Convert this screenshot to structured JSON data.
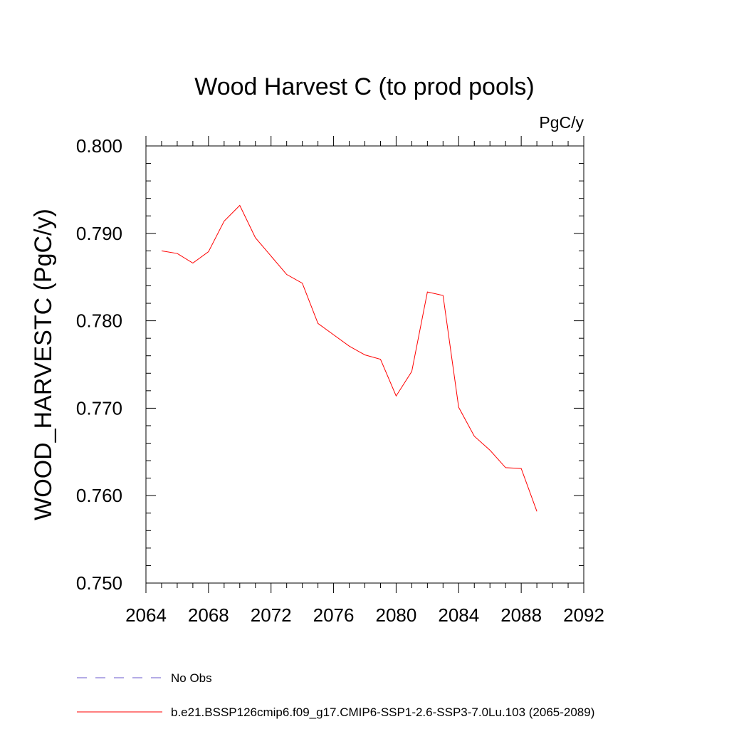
{
  "chart_data": {
    "type": "line",
    "title": "Wood Harvest C (to prod pools)",
    "units": "PgC/y",
    "xlabel": "",
    "ylabel": "WOOD_HARVESTC  (PgC/y)",
    "xlim": [
      2064,
      2092
    ],
    "ylim": [
      0.75,
      0.8
    ],
    "x_ticks": [
      2064,
      2068,
      2072,
      2076,
      2080,
      2084,
      2088,
      2092
    ],
    "x_tick_labels": [
      "2064",
      "2068",
      "2072",
      "2076",
      "2080",
      "2084",
      "2088",
      "2092"
    ],
    "y_ticks": [
      0.75,
      0.76,
      0.77,
      0.78,
      0.79,
      0.8
    ],
    "y_tick_labels": [
      "0.750",
      "0.760",
      "0.770",
      "0.780",
      "0.790",
      "0.800"
    ],
    "grid": false,
    "legend_position": "bottom-left",
    "series": [
      {
        "name": "No Obs",
        "color": "#6a5acd",
        "style": "dashed",
        "x": [],
        "values": []
      },
      {
        "name": "b.e21.BSSP126cmip6.f09_g17.CMIP6-SSP1-2.6-SSP3-7.0Lu.103 (2065-2089)",
        "color": "#ff0000",
        "style": "solid",
        "x": [
          2065,
          2066,
          2067,
          2068,
          2069,
          2070,
          2071,
          2072,
          2073,
          2074,
          2075,
          2076,
          2077,
          2078,
          2079,
          2080,
          2081,
          2082,
          2083,
          2084,
          2085,
          2086,
          2087,
          2088,
          2089
        ],
        "values": [
          0.788,
          0.7877,
          0.7866,
          0.7879,
          0.7914,
          0.7932,
          0.7895,
          0.7874,
          0.7853,
          0.7843,
          0.7797,
          0.7784,
          0.7771,
          0.7761,
          0.7756,
          0.7714,
          0.7742,
          0.7833,
          0.7829,
          0.7701,
          0.7668,
          0.7652,
          0.7632,
          0.7631,
          0.7582
        ]
      }
    ]
  }
}
